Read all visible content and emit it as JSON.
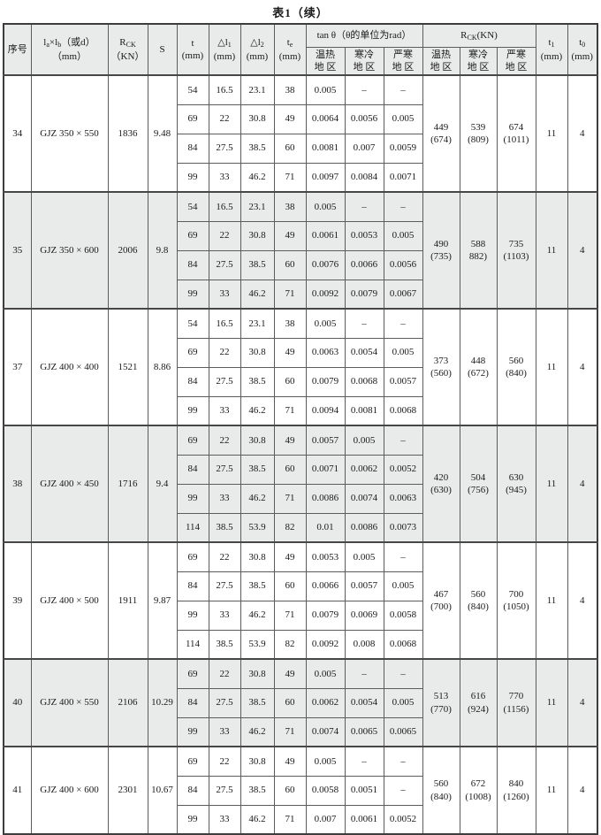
{
  "title": "表1（续）",
  "header": {
    "seq": "序号",
    "dims_html": "l<sub>a</sub>×l<sub>b</sub>（或d）<br>（mm）",
    "rck_html": "R<sub>CK</sub><br>（KN）",
    "s": "S",
    "t_html": "t<br>(mm)",
    "dl1_html": "△l<sub>1</sub><br>(mm)",
    "dl2_html": "△l<sub>2</sub><br>(mm)",
    "te_html": "t<sub>e</sub><br>(mm)",
    "tan_group": "tan θ（θ的单位为rad）",
    "rck_group_html": "R<sub>CK</sub>(KN)",
    "region_warm": "温热\n地 区",
    "region_cold": "寒冷\n地 区",
    "region_severe": "严寒\n地 区",
    "t1_html": "t<sub>1</sub><br>(mm)",
    "t0_html": "t<sub>0</sub><br>(mm)"
  },
  "groups": [
    {
      "seq": "34",
      "model": "GJZ 350 × 550",
      "rck": "1836",
      "s": "9.48",
      "shaded": false,
      "rows": [
        [
          "54",
          "16.5",
          "23.1",
          "38",
          "0.005",
          "–",
          "–"
        ],
        [
          "69",
          "22",
          "30.8",
          "49",
          "0.0064",
          "0.0056",
          "0.005"
        ],
        [
          "84",
          "27.5",
          "38.5",
          "60",
          "0.0081",
          "0.007",
          "0.0059"
        ],
        [
          "99",
          "33",
          "46.2",
          "71",
          "0.0097",
          "0.0084",
          "0.0071"
        ]
      ],
      "rck_regions": [
        "449\n(674)",
        "539\n(809)",
        "674\n(1011)"
      ],
      "t1": "11",
      "t0": "4"
    },
    {
      "seq": "35",
      "model": "GJZ 350 × 600",
      "rck": "2006",
      "s": "9.8",
      "shaded": true,
      "rows": [
        [
          "54",
          "16.5",
          "23.1",
          "38",
          "0.005",
          "–",
          "–"
        ],
        [
          "69",
          "22",
          "30.8",
          "49",
          "0.0061",
          "0.0053",
          "0.005"
        ],
        [
          "84",
          "27.5",
          "38.5",
          "60",
          "0.0076",
          "0.0066",
          "0.0056"
        ],
        [
          "99",
          "33",
          "46.2",
          "71",
          "0.0092",
          "0.0079",
          "0.0067"
        ]
      ],
      "rck_regions": [
        "490\n(735)",
        "588\n882)",
        "735\n(1103)"
      ],
      "t1": "11",
      "t0": "4"
    },
    {
      "seq": "37",
      "model": "GJZ 400 × 400",
      "rck": "1521",
      "s": "8.86",
      "shaded": false,
      "rows": [
        [
          "54",
          "16.5",
          "23.1",
          "38",
          "0.005",
          "–",
          "–"
        ],
        [
          "69",
          "22",
          "30.8",
          "49",
          "0.0063",
          "0.0054",
          "0.005"
        ],
        [
          "84",
          "27.5",
          "38.5",
          "60",
          "0.0079",
          "0.0068",
          "0.0057"
        ],
        [
          "99",
          "33",
          "46.2",
          "71",
          "0.0094",
          "0.0081",
          "0.0068"
        ]
      ],
      "rck_regions": [
        "373\n(560)",
        "448\n(672)",
        "560\n(840)"
      ],
      "t1": "11",
      "t0": "4"
    },
    {
      "seq": "38",
      "model": "GJZ 400 × 450",
      "rck": "1716",
      "s": "9.4",
      "shaded": true,
      "rows": [
        [
          "69",
          "22",
          "30.8",
          "49",
          "0.0057",
          "0.005",
          "–"
        ],
        [
          "84",
          "27.5",
          "38.5",
          "60",
          "0.0071",
          "0.0062",
          "0.0052"
        ],
        [
          "99",
          "33",
          "46.2",
          "71",
          "0.0086",
          "0.0074",
          "0.0063"
        ],
        [
          "114",
          "38.5",
          "53.9",
          "82",
          "0.01",
          "0.0086",
          "0.0073"
        ]
      ],
      "rck_regions": [
        "420\n(630)",
        "504\n(756)",
        "630\n(945)"
      ],
      "t1": "11",
      "t0": "4"
    },
    {
      "seq": "39",
      "model": "GJZ 400 × 500",
      "rck": "1911",
      "s": "9.87",
      "shaded": false,
      "rows": [
        [
          "69",
          "22",
          "30.8",
          "49",
          "0.0053",
          "0.005",
          "–"
        ],
        [
          "84",
          "27.5",
          "38.5",
          "60",
          "0.0066",
          "0.0057",
          "0.005"
        ],
        [
          "99",
          "33",
          "46.2",
          "71",
          "0.0079",
          "0.0069",
          "0.0058"
        ],
        [
          "114",
          "38.5",
          "53.9",
          "82",
          "0.0092",
          "0.008",
          "0.0068"
        ]
      ],
      "rck_regions": [
        "467\n(700)",
        "560\n(840)",
        "700\n(1050)"
      ],
      "t1": "11",
      "t0": "4"
    },
    {
      "seq": "40",
      "model": "GJZ 400 × 550",
      "rck": "2106",
      "s": "10.29",
      "shaded": true,
      "rows": [
        [
          "69",
          "22",
          "30.8",
          "49",
          "0.005",
          "–",
          "–"
        ],
        [
          "84",
          "27.5",
          "38.5",
          "60",
          "0.0062",
          "0.0054",
          "0.005"
        ],
        [
          "99",
          "33",
          "46.2",
          "71",
          "0.0074",
          "0.0065",
          "0.0065"
        ]
      ],
      "rck_regions": [
        "513\n(770)",
        "616\n(924)",
        "770\n(1156)"
      ],
      "t1": "11",
      "t0": "4"
    },
    {
      "seq": "41",
      "model": "GJZ 400 × 600",
      "rck": "2301",
      "s": "10.67",
      "shaded": false,
      "rows": [
        [
          "69",
          "22",
          "30.8",
          "49",
          "0.005",
          "–",
          "–"
        ],
        [
          "84",
          "27.5",
          "38.5",
          "60",
          "0.0058",
          "0.0051",
          "–"
        ],
        [
          "99",
          "33",
          "46.2",
          "71",
          "0.007",
          "0.0061",
          "0.0052"
        ]
      ],
      "rck_regions": [
        "560\n(840)",
        "672\n(1008)",
        "840\n(1260)"
      ],
      "t1": "11",
      "t0": "4"
    }
  ]
}
